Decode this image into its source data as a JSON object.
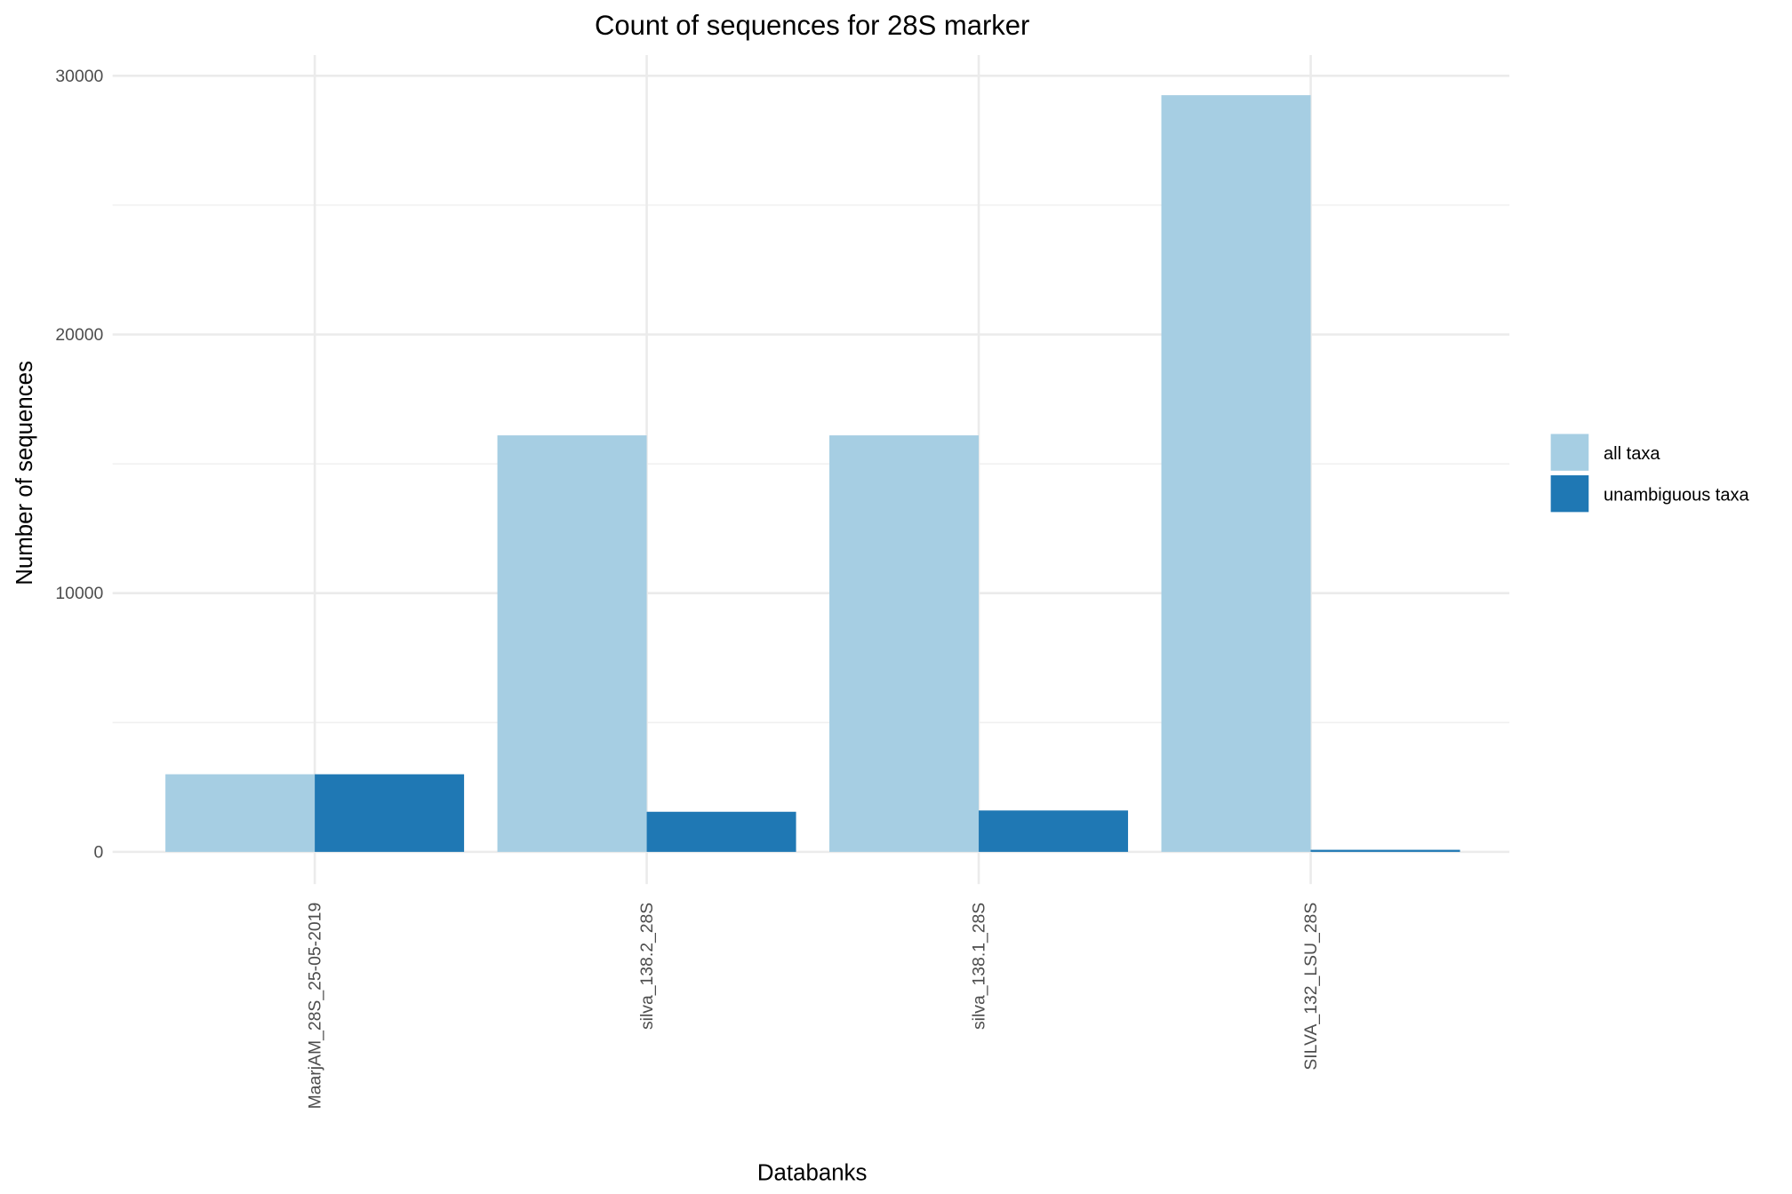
{
  "chart_data": {
    "type": "bar",
    "title": "Count of sequences for 28S marker",
    "xlabel": "Databanks",
    "ylabel": "Number of sequences",
    "categories": [
      "MaarjAM_28S_25-05-2019",
      "silva_138.2_28S",
      "silva_138.1_28S",
      "SILVA_132_LSU_28S"
    ],
    "series": [
      {
        "name": "all taxa",
        "color": "#a6cee3",
        "values": [
          3000,
          16100,
          16100,
          29250
        ]
      },
      {
        "name": "unambiguous taxa",
        "color": "#1f78b4",
        "values": [
          3000,
          1550,
          1600,
          80
        ]
      }
    ],
    "ylim": [
      0,
      30000
    ],
    "yticks": [
      0,
      10000,
      20000,
      30000
    ],
    "ytick_labels": [
      "0",
      "10000",
      "20000",
      "30000"
    ],
    "grid": true,
    "legend_position": "right"
  }
}
